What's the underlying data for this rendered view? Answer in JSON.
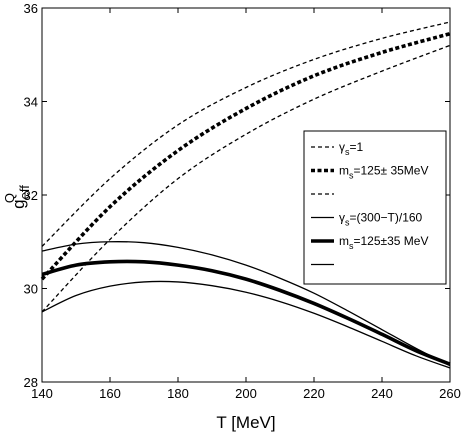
{
  "chart_data": {
    "type": "line",
    "xlabel": "T [MeV]",
    "ylabel": {
      "base": "g",
      "sub": "eff",
      "sup": "Q"
    },
    "xlim": [
      140,
      260
    ],
    "ylim": [
      28,
      36
    ],
    "xticks": [
      140,
      160,
      180,
      200,
      220,
      240,
      260
    ],
    "yticks": [
      28,
      30,
      32,
      34,
      36
    ],
    "grid": false,
    "legend_position": "right",
    "legend": [
      {
        "style": "thin-dashed",
        "label": "γs=1",
        "label_parts": {
          "base": "γ",
          "sub": "s",
          "rest": "=1"
        }
      },
      {
        "style": "thick-dashed",
        "label": "ms=125± 35MeV",
        "label_parts": {
          "base": "m",
          "sub": "s",
          "rest": "=125± 35MeV"
        }
      },
      {
        "style": "thin-dashed",
        "label": ""
      },
      {
        "style": "thin-solid",
        "label": "γs=(300−T)/160",
        "label_parts": {
          "base": "γ",
          "sub": "s",
          "rest": "=(300−T)/160"
        }
      },
      {
        "style": "thick-solid",
        "label": "ms=125±35 MeV",
        "label_parts": {
          "base": "m",
          "sub": "s",
          "rest": "=125±35 MeV"
        }
      },
      {
        "style": "thin-solid",
        "label": ""
      }
    ],
    "series": [
      {
        "style": "thin-dashed",
        "x": [
          140,
          160,
          180,
          200,
          220,
          240,
          260
        ],
        "y": [
          30.9,
          32.35,
          33.5,
          34.3,
          34.9,
          35.35,
          35.7
        ]
      },
      {
        "style": "thick-dashed",
        "x": [
          140,
          160,
          180,
          200,
          220,
          240,
          260
        ],
        "y": [
          30.2,
          31.75,
          32.95,
          33.85,
          34.55,
          35.05,
          35.45
        ]
      },
      {
        "style": "thin-dashed",
        "x": [
          140,
          160,
          180,
          200,
          220,
          240,
          260
        ],
        "y": [
          29.5,
          31.05,
          32.35,
          33.3,
          34.05,
          34.65,
          35.2
        ]
      },
      {
        "style": "thin-solid",
        "x": [
          140,
          150,
          160,
          170,
          180,
          190,
          200,
          210,
          220,
          230,
          240,
          250,
          260
        ],
        "y": [
          30.8,
          30.95,
          31.0,
          30.98,
          30.88,
          30.72,
          30.5,
          30.22,
          29.9,
          29.52,
          29.12,
          28.72,
          28.35
        ]
      },
      {
        "style": "thick-solid",
        "x": [
          140,
          150,
          160,
          170,
          180,
          190,
          200,
          210,
          220,
          230,
          240,
          250,
          260
        ],
        "y": [
          30.3,
          30.5,
          30.57,
          30.57,
          30.5,
          30.38,
          30.2,
          29.96,
          29.68,
          29.36,
          29.02,
          28.67,
          28.38
        ]
      },
      {
        "style": "thin-solid",
        "x": [
          140,
          150,
          160,
          170,
          180,
          190,
          200,
          210,
          220,
          230,
          240,
          250,
          260
        ],
        "y": [
          29.5,
          29.85,
          30.05,
          30.14,
          30.14,
          30.06,
          29.92,
          29.72,
          29.47,
          29.18,
          28.87,
          28.56,
          28.3
        ]
      }
    ]
  }
}
